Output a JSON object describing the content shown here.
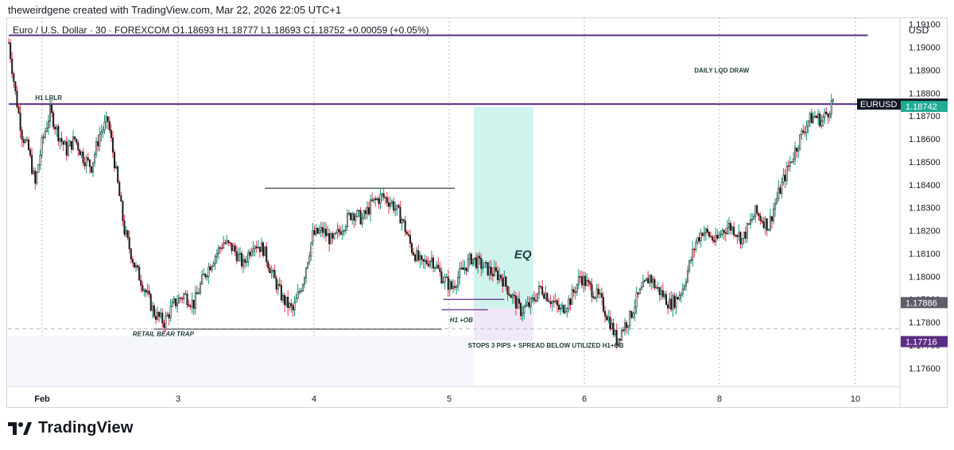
{
  "credit": "theweirdgene created with TradingView.com, Mar 22, 2026 22:05 UTC+1",
  "brand": "TradingView",
  "symbol_line": "Euro / U.S. Dollar · 30 · FOREXCOM  O1.18693  H1.18777  L1.18693  C1.18752  +0.00059 (+0.05%)",
  "colors": {
    "up": "#089981",
    "down": "#f23645",
    "candle_body": "#1e1e1e",
    "purple": "#5b2c83",
    "teal_zone": "#b2ebe3",
    "lilac_zone": "#e6d9f0",
    "level_line": "#2a2e39",
    "grid": "#e0e3eb"
  },
  "chart_data": {
    "type": "candlestick",
    "currency": "USD",
    "ylim": [
      1.1752,
      1.1913
    ],
    "y_ticks": [
      "1.19100",
      "1.19000",
      "1.18900",
      "1.18800",
      "1.18700",
      "1.18600",
      "1.18500",
      "1.18400",
      "1.18300",
      "1.18200",
      "1.18100",
      "1.18000",
      "1.17900",
      "1.17800",
      "1.17700",
      "1.17600"
    ],
    "x_ticks": [
      {
        "label": "Feb",
        "session": 0
      },
      {
        "label": "3",
        "session": 1
      },
      {
        "label": "4",
        "session": 2
      },
      {
        "label": "5",
        "session": 3
      },
      {
        "label": "6",
        "session": 4
      },
      {
        "label": "8",
        "session": 5
      },
      {
        "label": "10",
        "session": 6
      }
    ],
    "price_path": [
      [
        0,
        1.1902
      ],
      [
        4,
        1.188
      ],
      [
        8,
        1.1862
      ],
      [
        12,
        1.1855
      ],
      [
        16,
        1.184
      ],
      [
        20,
        1.1858
      ],
      [
        25,
        1.1872
      ],
      [
        30,
        1.1862
      ],
      [
        35,
        1.1855
      ],
      [
        40,
        1.186
      ],
      [
        45,
        1.1852
      ],
      [
        50,
        1.1848
      ],
      [
        55,
        1.1862
      ],
      [
        60,
        1.1868
      ],
      [
        64,
        1.185
      ],
      [
        70,
        1.182
      ],
      [
        76,
        1.1805
      ],
      [
        82,
        1.1795
      ],
      [
        88,
        1.1784
      ],
      [
        94,
        1.178
      ],
      [
        100,
        1.1788
      ],
      [
        106,
        1.1792
      ],
      [
        112,
        1.1788
      ],
      [
        118,
        1.18
      ],
      [
        124,
        1.1808
      ],
      [
        130,
        1.1815
      ],
      [
        136,
        1.1812
      ],
      [
        142,
        1.1805
      ],
      [
        148,
        1.1815
      ],
      [
        154,
        1.1812
      ],
      [
        160,
        1.18
      ],
      [
        166,
        1.179
      ],
      [
        172,
        1.1785
      ],
      [
        178,
        1.1798
      ],
      [
        184,
        1.1818
      ],
      [
        190,
        1.182
      ],
      [
        196,
        1.1815
      ],
      [
        202,
        1.1822
      ],
      [
        208,
        1.1828
      ],
      [
        214,
        1.1825
      ],
      [
        220,
        1.1832
      ],
      [
        226,
        1.1835
      ],
      [
        232,
        1.1832
      ],
      [
        238,
        1.1825
      ],
      [
        244,
        1.1812
      ],
      [
        250,
        1.1805
      ],
      [
        256,
        1.1808
      ],
      [
        262,
        1.18
      ],
      [
        268,
        1.1795
      ],
      [
        274,
        1.1802
      ],
      [
        280,
        1.1808
      ],
      [
        286,
        1.1805
      ],
      [
        292,
        1.1802
      ],
      [
        298,
        1.18
      ],
      [
        304,
        1.1792
      ],
      [
        310,
        1.1785
      ],
      [
        316,
        1.1788
      ],
      [
        322,
        1.1795
      ],
      [
        328,
        1.179
      ],
      [
        334,
        1.1785
      ],
      [
        340,
        1.179
      ],
      [
        346,
        1.18
      ],
      [
        352,
        1.1795
      ],
      [
        358,
        1.179
      ],
      [
        364,
        1.178
      ],
      [
        368,
        1.1772
      ],
      [
        372,
        1.1778
      ],
      [
        376,
        1.1782
      ],
      [
        380,
        1.179
      ],
      [
        384,
        1.1795
      ],
      [
        388,
        1.18
      ],
      [
        392,
        1.1795
      ],
      [
        396,
        1.1792
      ],
      [
        400,
        1.1788
      ],
      [
        404,
        1.179
      ],
      [
        408,
        1.1795
      ],
      [
        412,
        1.1805
      ],
      [
        416,
        1.1815
      ],
      [
        420,
        1.182
      ],
      [
        424,
        1.1818
      ],
      [
        428,
        1.1815
      ],
      [
        432,
        1.182
      ],
      [
        436,
        1.1822
      ],
      [
        440,
        1.182
      ],
      [
        444,
        1.1816
      ],
      [
        448,
        1.1822
      ],
      [
        452,
        1.1828
      ],
      [
        456,
        1.1825
      ],
      [
        460,
        1.1822
      ],
      [
        464,
        1.1832
      ],
      [
        468,
        1.184
      ],
      [
        472,
        1.1848
      ],
      [
        476,
        1.1855
      ],
      [
        480,
        1.1862
      ],
      [
        484,
        1.1868
      ],
      [
        488,
        1.187
      ],
      [
        492,
        1.1868
      ],
      [
        496,
        1.1872
      ],
      [
        499,
        1.1877
      ]
    ],
    "candle_count": 500,
    "last_price": {
      "symbol": "EURUSD",
      "value": "1.18752"
    },
    "price_labels": [
      {
        "value": "1.18742",
        "kind": "teal"
      },
      {
        "value": "1.17886",
        "kind": "gray"
      },
      {
        "value": "1.17716",
        "kind": "purple"
      }
    ],
    "levels": [
      {
        "name": "daily-high-line",
        "price": 1.19052,
        "color": "purple",
        "from": 0,
        "to": 520
      },
      {
        "name": "h1-lrlr-line",
        "price": 1.18752,
        "color": "purple",
        "from": 0,
        "to": 520
      },
      {
        "name": "eq-level-line",
        "price": 1.18385,
        "color": "dark",
        "from": 155,
        "to": 270
      }
    ],
    "zones": [
      {
        "name": "teal-zone",
        "from": 282,
        "to": 318,
        "top": 1.1874,
        "bottom": 1.1786,
        "color": "teal"
      },
      {
        "name": "lilac-zone",
        "from": 282,
        "to": 318,
        "top": 1.1786,
        "bottom": 1.1772,
        "color": "lilac"
      },
      {
        "name": "retail-bear-trap-zone",
        "from": 0,
        "to": 282,
        "top": 1.1774,
        "bottom": 1.1752,
        "color": "faint"
      }
    ],
    "annotations": [
      {
        "text": "H1 LRLR",
        "bar": 16,
        "price": 1.1877,
        "italic": false
      },
      {
        "text": "DAILY LQD DRAW",
        "bar": 415,
        "price": 1.1889,
        "italic": false
      },
      {
        "text": "EQ",
        "bar": 306,
        "price": 1.1808,
        "italic": true,
        "big": true
      },
      {
        "text": "H1 +OB",
        "bar": 267,
        "price": 1.178,
        "italic": true
      },
      {
        "text": "RETAIL BEAR TRAP",
        "bar": 75,
        "price": 1.1774,
        "italic": true
      },
      {
        "text": "STOPS 3 PIPS + SPREAD BELOW UTILIZED H1+OB",
        "bar": 278,
        "price": 1.1769,
        "italic": false
      }
    ]
  }
}
